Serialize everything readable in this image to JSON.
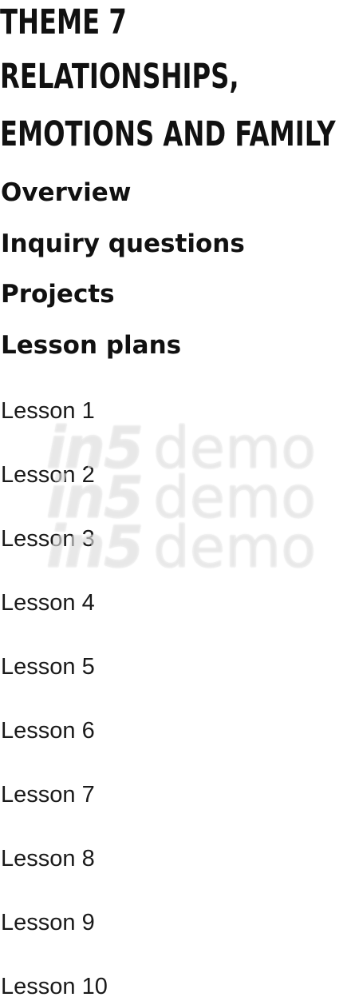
{
  "header": {
    "title_lines": [
      "Theme 7",
      "Relationships,",
      "emotions and family"
    ]
  },
  "nav": {
    "items": [
      {
        "label": "Overview"
      },
      {
        "label": "Inquiry questions"
      },
      {
        "label": "Projects"
      },
      {
        "label": "Lesson plans"
      }
    ]
  },
  "lessons": [
    {
      "label": "Lesson 1"
    },
    {
      "label": "Lesson 2"
    },
    {
      "label": "Lesson 3"
    },
    {
      "label": "Lesson 4"
    },
    {
      "label": "Lesson 5"
    },
    {
      "label": "Lesson 6"
    },
    {
      "label": "Lesson 7"
    },
    {
      "label": "Lesson 8"
    },
    {
      "label": "Lesson 9"
    },
    {
      "label": "Lesson 10"
    }
  ],
  "watermark": {
    "brand": "in5",
    "word": "demo"
  }
}
